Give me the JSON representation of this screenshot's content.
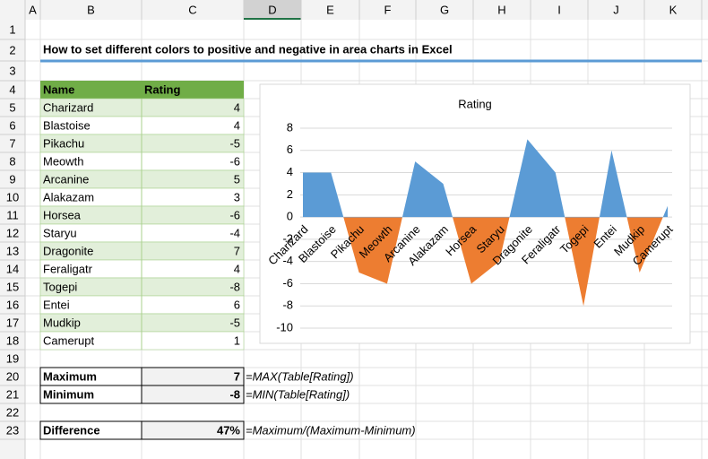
{
  "columns": [
    "A",
    "B",
    "C",
    "D",
    "E",
    "F",
    "G",
    "H",
    "I",
    "J",
    "K"
  ],
  "row_numbers": [
    1,
    2,
    3,
    4,
    5,
    6,
    7,
    8,
    9,
    10,
    11,
    12,
    13,
    14,
    15,
    16,
    17,
    18,
    19,
    20,
    21,
    22,
    23
  ],
  "title": "How to set different colors to positive and negative in area charts in Excel",
  "table": {
    "header": [
      "Name",
      "Rating"
    ],
    "rows": [
      [
        "Charizard",
        4
      ],
      [
        "Blastoise",
        4
      ],
      [
        "Pikachu",
        -5
      ],
      [
        "Meowth",
        -6
      ],
      [
        "Arcanine",
        5
      ],
      [
        "Alakazam",
        3
      ],
      [
        "Horsea",
        -6
      ],
      [
        "Staryu",
        -4
      ],
      [
        "Dragonite",
        7
      ],
      [
        "Feraligatr",
        4
      ],
      [
        "Togepi",
        -8
      ],
      [
        "Entei",
        6
      ],
      [
        "Mudkip",
        -5
      ],
      [
        "Camerupt",
        1
      ]
    ]
  },
  "chart_data": {
    "type": "area",
    "title": "Rating",
    "categories": [
      "Charizard",
      "Blastoise",
      "Pikachu",
      "Meowth",
      "Arcanine",
      "Alakazam",
      "Horsea",
      "Staryu",
      "Dragonite",
      "Feraligatr",
      "Togepi",
      "Entei",
      "Mudkip",
      "Camerupt"
    ],
    "values": [
      4,
      4,
      -5,
      -6,
      5,
      3,
      -6,
      -4,
      7,
      4,
      -8,
      6,
      -5,
      1
    ],
    "ylim": [
      -10,
      8
    ],
    "yticks": [
      -10,
      -8,
      -6,
      -4,
      -2,
      0,
      2,
      4,
      6,
      8
    ],
    "grid": true,
    "positive_color": "#5b9bd5",
    "negative_color": "#ed7d31"
  },
  "summary": [
    {
      "label": "Maximum",
      "value": 7,
      "formula": "=MAX(Table[Rating])"
    },
    {
      "label": "Minimum",
      "value": -8,
      "formula": "=MIN(Table[Rating])"
    },
    {
      "label": "Difference",
      "value": 47,
      "value_label": "47%",
      "formula": "=Maximum/(Maximum-Minimum)"
    }
  ]
}
